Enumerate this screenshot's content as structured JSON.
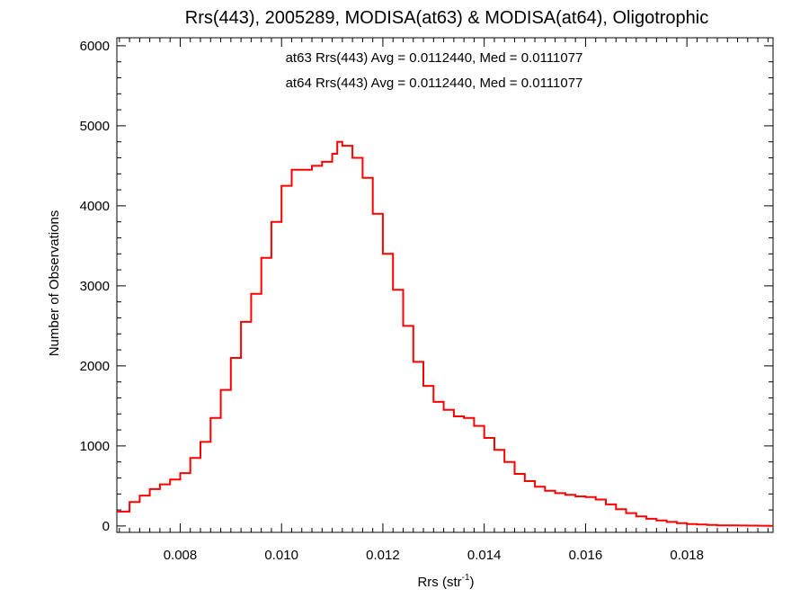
{
  "chart_data": {
    "type": "line",
    "style": "step histogram",
    "title": "Rrs(443), 2005289, MODISA(at63) & MODISA(at64), Oligotrophic",
    "xlabel_base": "Rrs (str",
    "xlabel_sup": "-1",
    "xlabel_end": ")",
    "ylabel": "Number of Observations",
    "xlim": [
      0.00675,
      0.0197
    ],
    "ylim": [
      -80,
      6100
    ],
    "grid": false,
    "xticks": [
      0.008,
      0.01,
      0.012,
      0.014,
      0.016,
      0.018
    ],
    "xtick_labels": [
      "0.008",
      "0.010",
      "0.012",
      "0.014",
      "0.016",
      "0.018"
    ],
    "yticks": [
      0,
      1000,
      2000,
      3000,
      4000,
      5000,
      6000
    ],
    "ytick_labels": [
      "0",
      "1000",
      "2000",
      "3000",
      "4000",
      "5000",
      "6000"
    ],
    "annotations": [
      {
        "text": "at63 Rrs(443) Avg = 0.0112440, Med = 0.0111077",
        "color": "#000000"
      },
      {
        "text": "at64 Rrs(443) Avg = 0.0112440, Med = 0.0111077",
        "color": "#ff0000"
      }
    ],
    "series": [
      {
        "color": "#ff0000",
        "x": [
          0.00675,
          0.007,
          0.0072,
          0.0074,
          0.0076,
          0.0078,
          0.008,
          0.0082,
          0.0084,
          0.0086,
          0.0088,
          0.009,
          0.0092,
          0.0094,
          0.0096,
          0.0098,
          0.01,
          0.0102,
          0.0104,
          0.0106,
          0.0108,
          0.011,
          0.0111,
          0.0112,
          0.0114,
          0.0116,
          0.0118,
          0.012,
          0.0122,
          0.0124,
          0.0126,
          0.0128,
          0.013,
          0.0132,
          0.0134,
          0.0136,
          0.0138,
          0.014,
          0.0142,
          0.0144,
          0.0146,
          0.0148,
          0.015,
          0.0152,
          0.0154,
          0.0156,
          0.0158,
          0.016,
          0.0162,
          0.0164,
          0.0166,
          0.0168,
          0.017,
          0.0172,
          0.0174,
          0.0176,
          0.0178,
          0.018,
          0.0182,
          0.0184,
          0.0186,
          0.0188,
          0.019,
          0.0192,
          0.0194,
          0.0196
        ],
        "y": [
          180,
          300,
          380,
          460,
          520,
          580,
          660,
          850,
          1050,
          1350,
          1700,
          2100,
          2550,
          2900,
          3350,
          3800,
          4250,
          4450,
          4450,
          4500,
          4550,
          4650,
          4800,
          4750,
          4600,
          4350,
          3900,
          3400,
          2950,
          2500,
          2050,
          1750,
          1550,
          1450,
          1370,
          1350,
          1250,
          1100,
          950,
          800,
          650,
          560,
          490,
          440,
          410,
          390,
          370,
          360,
          330,
          270,
          210,
          160,
          120,
          90,
          70,
          50,
          35,
          25,
          18,
          12,
          8,
          6,
          5,
          4,
          3,
          2
        ]
      }
    ]
  }
}
